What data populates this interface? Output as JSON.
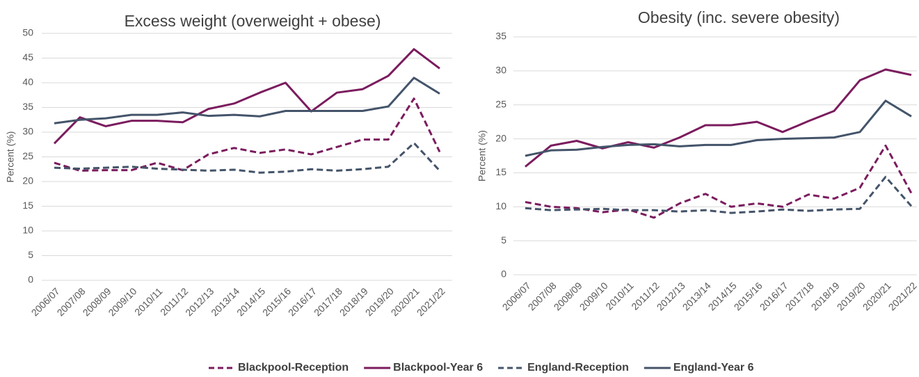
{
  "chart_data": [
    {
      "type": "line",
      "title": "Excess weight (overweight + obese)",
      "y_label": "Percent (%)",
      "categories": [
        "2006/07",
        "2007/08",
        "2008/09",
        "2009/10",
        "2010/11",
        "2011/12",
        "2012/13",
        "2013/14",
        "2014/15",
        "2015/16",
        "2016/17",
        "2017/18",
        "2018/19",
        "2019/20",
        "2020/21",
        "2021/22"
      ],
      "series": [
        {
          "name": "Blackpool-Reception",
          "color": "#7b1c5e",
          "dashed": true,
          "values": [
            23.8,
            22.2,
            22.3,
            22.3,
            23.8,
            22.3,
            25.5,
            26.8,
            25.8,
            26.5,
            25.5,
            27,
            28.5,
            28.5,
            36.8,
            26
          ]
        },
        {
          "name": "Blackpool-Year 6",
          "color": "#7b1c5e",
          "dashed": false,
          "values": [
            27.7,
            33,
            31.2,
            32.3,
            32.3,
            32,
            34.7,
            35.8,
            38,
            40,
            34.2,
            38,
            38.7,
            41.4,
            46.8,
            42.9
          ]
        },
        {
          "name": "England-Reception",
          "color": "#44546a",
          "dashed": true,
          "values": [
            22.8,
            22.6,
            22.8,
            23,
            22.6,
            22.4,
            22.2,
            22.4,
            21.8,
            22,
            22.5,
            22.2,
            22.5,
            23,
            27.8,
            22.2
          ]
        },
        {
          "name": "England-Year 6",
          "color": "#44546a",
          "dashed": false,
          "values": [
            31.8,
            32.5,
            32.8,
            33.5,
            33.5,
            34,
            33.3,
            33.5,
            33.2,
            34.3,
            34.3,
            34.3,
            34.3,
            35.2,
            41,
            37.8
          ]
        }
      ],
      "ylim": [
        0,
        50
      ],
      "yticks": [
        0,
        5,
        10,
        15,
        20,
        25,
        30,
        35,
        40,
        45,
        50
      ],
      "grid": true,
      "legend": "bottom"
    },
    {
      "type": "line",
      "title": "Obesity (inc. severe obesity)",
      "y_label": "Percent (%)",
      "categories": [
        "2006/07",
        "2007/08",
        "2008/09",
        "2009/10",
        "2010/11",
        "2011/12",
        "2012/13",
        "2013/14",
        "2014/15",
        "2015/16",
        "2016/17",
        "2017/18",
        "2018/19",
        "2019/20",
        "2020/21",
        "2021/22"
      ],
      "series": [
        {
          "name": "Blackpool-Reception",
          "color": "#7b1c5e",
          "dashed": true,
          "values": [
            10.7,
            10,
            9.8,
            9.2,
            9.6,
            8.4,
            10.5,
            11.9,
            10,
            10.5,
            10,
            11.8,
            11.2,
            12.8,
            19,
            12
          ]
        },
        {
          "name": "Blackpool-Year 6",
          "color": "#7b1c5e",
          "dashed": false,
          "values": [
            15.9,
            19,
            19.7,
            18.6,
            19.5,
            18.7,
            20.2,
            22,
            22,
            22.5,
            21,
            22.6,
            24.1,
            28.6,
            30.2,
            29.4
          ]
        },
        {
          "name": "England-Reception",
          "color": "#44546a",
          "dashed": true,
          "values": [
            9.8,
            9.5,
            9.6,
            9.7,
            9.5,
            9.5,
            9.3,
            9.5,
            9.1,
            9.3,
            9.6,
            9.4,
            9.6,
            9.7,
            14.4,
            10.1
          ]
        },
        {
          "name": "England-Year 6",
          "color": "#44546a",
          "dashed": false,
          "values": [
            17.5,
            18.3,
            18.4,
            18.8,
            19.1,
            19.2,
            18.9,
            19.1,
            19.1,
            19.8,
            20,
            20.1,
            20.2,
            21,
            25.6,
            23.3
          ]
        }
      ],
      "ylim": [
        0,
        35
      ],
      "yticks": [
        0,
        5,
        10,
        15,
        20,
        25,
        30,
        35
      ],
      "grid": true,
      "legend": "bottom"
    }
  ]
}
